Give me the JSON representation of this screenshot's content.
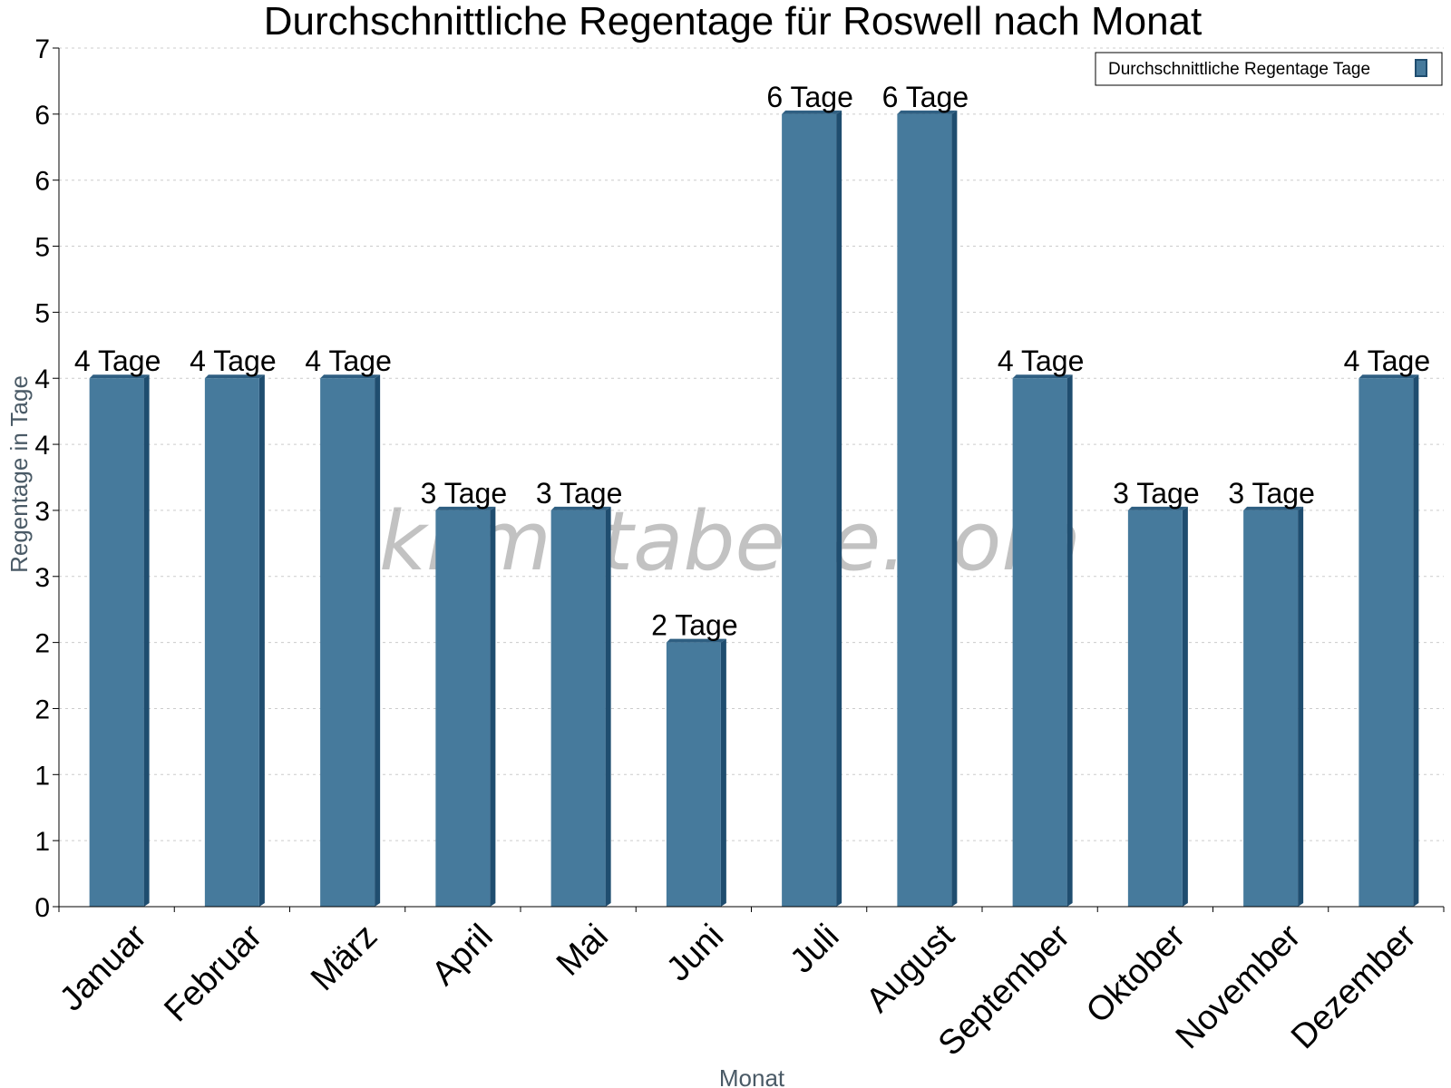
{
  "colors": {
    "bar_front": "#467a9c",
    "bar_side": "#1f4d6f",
    "bar_top": "#2f5f82"
  },
  "watermark": "klimatabelle.com",
  "chart_data": {
    "type": "bar",
    "title": "Durchschnittliche Regentage für Roswell nach Monat",
    "xlabel": "Monat",
    "ylabel": "Regentage in Tage",
    "ylim": [
      0,
      6.5
    ],
    "y_tick_labels": [
      "0",
      "1",
      "1",
      "2",
      "2",
      "3",
      "3",
      "4",
      "4",
      "5",
      "5",
      "6",
      "6",
      "7"
    ],
    "grid": true,
    "legend_position": "top-right",
    "categories": [
      "Januar",
      "Februar",
      "März",
      "April",
      "Mai",
      "Juni",
      "Juli",
      "August",
      "September",
      "Oktober",
      "November",
      "Dezember"
    ],
    "series": [
      {
        "name": "Durchschnittliche Regentage Tage",
        "values": [
          4,
          4,
          4,
          3,
          3,
          2,
          6,
          6,
          4,
          3,
          3,
          4
        ],
        "labels": [
          "4 Tage",
          "4 Tage",
          "4 Tage",
          "3 Tage",
          "3 Tage",
          "2 Tage",
          "6 Tage",
          "6 Tage",
          "4 Tage",
          "3 Tage",
          "3 Tage",
          "4 Tage"
        ]
      }
    ]
  }
}
